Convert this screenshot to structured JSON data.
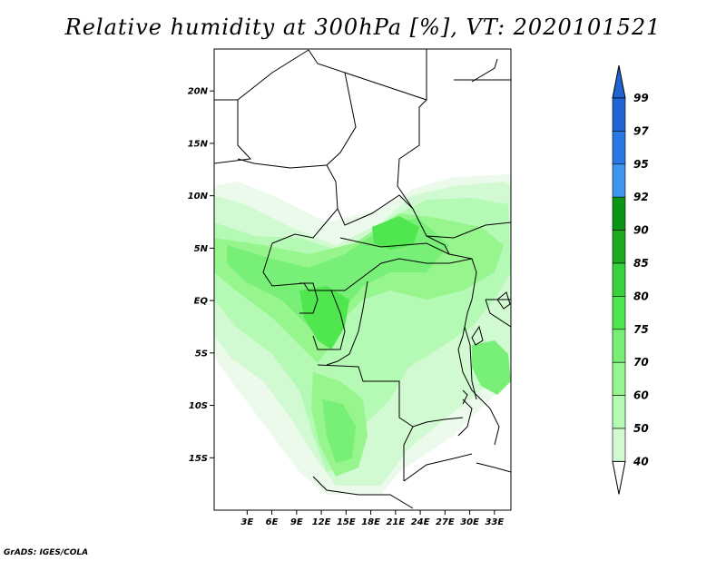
{
  "title": "Relative humidity at 300hPa [%], VT: 2020101521",
  "credit": "GrADS: IGES/COLA",
  "map": {
    "lat_range": [
      -20,
      24
    ],
    "lon_range": [
      -1,
      35
    ],
    "lat_ticks": [
      {
        "value": 20,
        "label": "20N"
      },
      {
        "value": 15,
        "label": "15N"
      },
      {
        "value": 10,
        "label": "10N"
      },
      {
        "value": 5,
        "label": "5N"
      },
      {
        "value": 0,
        "label": "EQ"
      },
      {
        "value": -5,
        "label": "5S"
      },
      {
        "value": -10,
        "label": "10S"
      },
      {
        "value": -15,
        "label": "15S"
      }
    ],
    "lon_ticks": [
      {
        "value": 3,
        "label": "3E"
      },
      {
        "value": 6,
        "label": "6E"
      },
      {
        "value": 9,
        "label": "9E"
      },
      {
        "value": 12,
        "label": "12E"
      },
      {
        "value": 15,
        "label": "15E"
      },
      {
        "value": 18,
        "label": "18E"
      },
      {
        "value": 21,
        "label": "21E"
      },
      {
        "value": 24,
        "label": "24E"
      },
      {
        "value": 27,
        "label": "27E"
      },
      {
        "value": 30,
        "label": "30E"
      },
      {
        "value": 33,
        "label": "33E"
      }
    ]
  },
  "colorbar": {
    "levels": [
      {
        "label": "99",
        "color": "#1e64d2"
      },
      {
        "label": "97",
        "color": "#2878e6"
      },
      {
        "label": "95",
        "color": "#3c96f0"
      },
      {
        "label": "92",
        "color": "#0a9614"
      },
      {
        "label": "90",
        "color": "#1eaa1e"
      },
      {
        "label": "85",
        "color": "#37d23c"
      },
      {
        "label": "80",
        "color": "#50e650"
      },
      {
        "label": "75",
        "color": "#78f078"
      },
      {
        "label": "70",
        "color": "#96f58c"
      },
      {
        "label": "60",
        "color": "#b4fab4"
      },
      {
        "label": "50",
        "color": "#d2fad2"
      },
      {
        "label": "40",
        "color": "#ebfaeb"
      }
    ],
    "top_arrow_color": "#1e64d2",
    "bottom_arrow_color": "#ffffff"
  }
}
